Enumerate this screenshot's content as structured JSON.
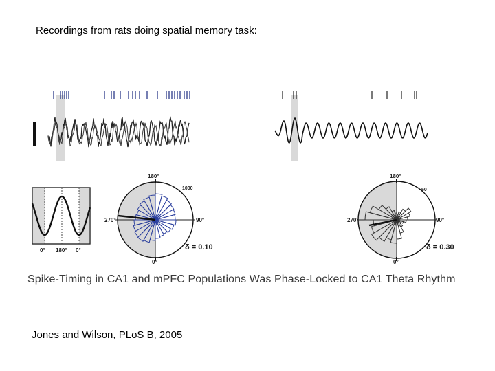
{
  "slide": {
    "title": "Recordings from rats doing spatial memory task:",
    "citation": "Jones and Wilson, PLoS B, 2005"
  },
  "figure": {
    "caption": "Spike-Timing in CA1 and mPFC Populations Was Phase-Locked to CA1 Theta Rhythm",
    "phase_histogram": {
      "tick_labels": [
        "0°",
        "180°",
        "0°"
      ]
    },
    "polar_left": {
      "top_label": "180°",
      "left_label": "270°",
      "right_label": "90°",
      "bottom_label": "0°",
      "scale_label": "1000",
      "delta_label": "δ = 0.10"
    },
    "polar_right": {
      "top_label": "180°",
      "left_label": "270°",
      "right_label": "90°",
      "bottom_label": "0°",
      "scale_label": "60",
      "delta_label": "δ = 0.30"
    },
    "colors": {
      "left_rose": "#2b3f9e",
      "right_rose": "#333333",
      "shade": "#d9d9d9",
      "spike_ticks": "#1a2a80"
    }
  }
}
